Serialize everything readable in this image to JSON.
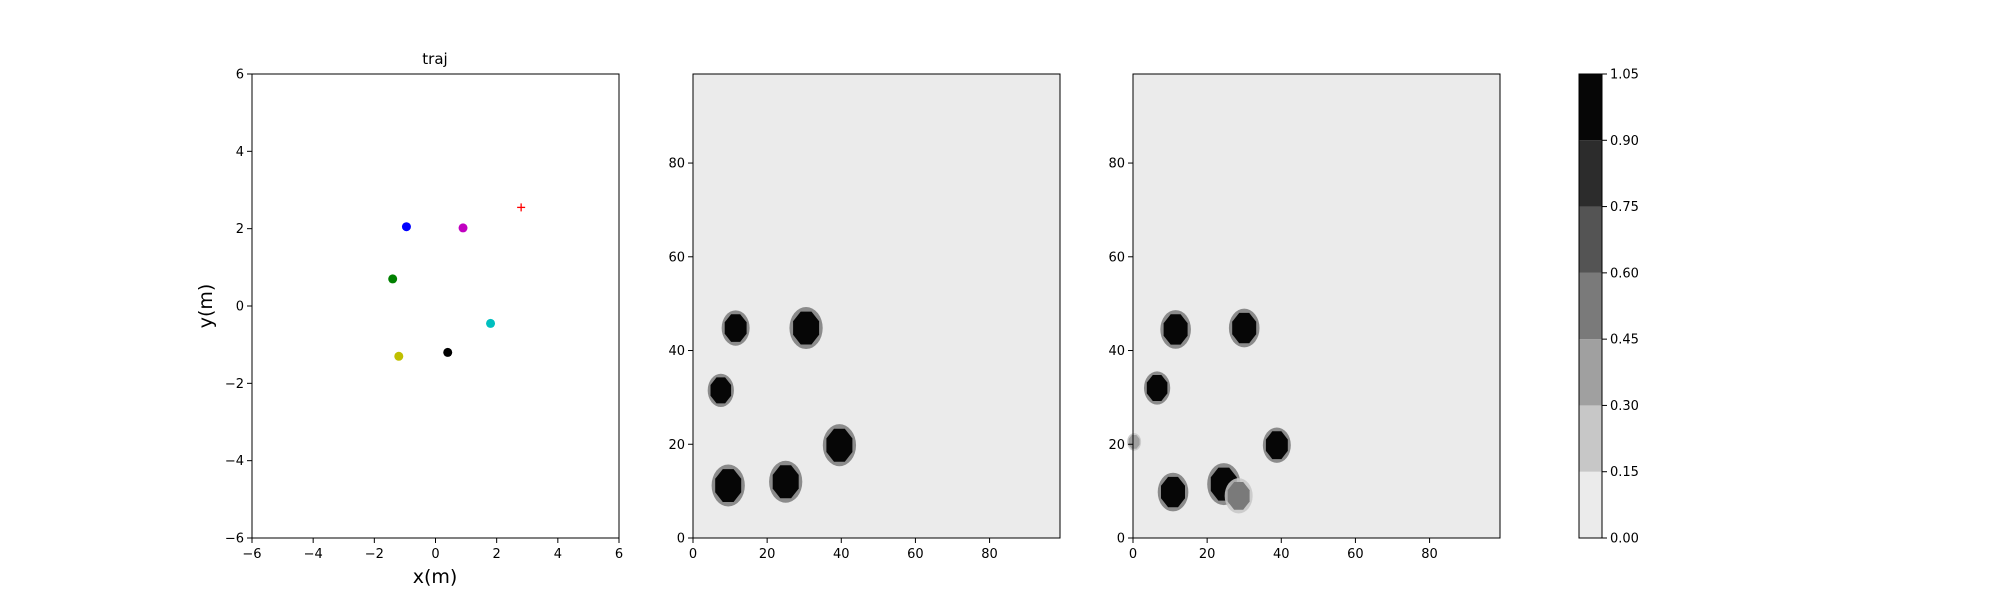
{
  "chart_data": [
    {
      "type": "scatter",
      "title": "traj",
      "xlabel": "x(m)",
      "ylabel": "y(m)",
      "xlim": [
        -6,
        6
      ],
      "ylim": [
        -6,
        6
      ],
      "xticks": [
        "−6",
        "−4",
        "−2",
        "0",
        "2",
        "4",
        "6"
      ],
      "yticks": [
        "−6",
        "−4",
        "−2",
        "0",
        "2",
        "4",
        "6"
      ],
      "grid": false,
      "points": [
        {
          "x": -0.95,
          "y": 2.05,
          "color": "#0000ff",
          "marker": "dot"
        },
        {
          "x": 0.9,
          "y": 2.02,
          "color": "#c000c0",
          "marker": "dot"
        },
        {
          "x": -1.4,
          "y": 0.7,
          "color": "#008000",
          "marker": "dot"
        },
        {
          "x": 1.8,
          "y": -0.45,
          "color": "#00bfbf",
          "marker": "dot"
        },
        {
          "x": 0.4,
          "y": -1.2,
          "color": "#000000",
          "marker": "dot"
        },
        {
          "x": -1.2,
          "y": -1.3,
          "color": "#bfbf00",
          "marker": "dot"
        },
        {
          "x": 2.8,
          "y": 2.55,
          "color": "#ff0000",
          "marker": "plus"
        }
      ]
    },
    {
      "type": "heatmap",
      "title": "",
      "xlim": [
        0,
        99
      ],
      "ylim": [
        0,
        99
      ],
      "xticks": [
        "0",
        "20",
        "40",
        "60",
        "80"
      ],
      "yticks": [
        "0",
        "20",
        "40",
        "60",
        "80"
      ],
      "background_value": 0.05,
      "blobs": [
        {
          "x": 11.5,
          "y": 44.8,
          "r": 3.2,
          "value": 1.0
        },
        {
          "x": 30.5,
          "y": 44.8,
          "r": 3.8,
          "value": 1.0
        },
        {
          "x": 7.5,
          "y": 31.5,
          "r": 3.0,
          "value": 1.0
        },
        {
          "x": 39.5,
          "y": 19.8,
          "r": 3.8,
          "value": 1.0
        },
        {
          "x": 9.5,
          "y": 11.2,
          "r": 3.8,
          "value": 1.0
        },
        {
          "x": 25.0,
          "y": 12.0,
          "r": 3.8,
          "value": 1.0
        }
      ]
    },
    {
      "type": "heatmap",
      "title": "",
      "xlim": [
        0,
        99
      ],
      "ylim": [
        0,
        99
      ],
      "xticks": [
        "0",
        "20",
        "40",
        "60",
        "80"
      ],
      "yticks": [
        "0",
        "20",
        "40",
        "60",
        "80"
      ],
      "background_value": 0.05,
      "blobs": [
        {
          "x": 11.5,
          "y": 44.5,
          "r": 3.5,
          "value": 1.0
        },
        {
          "x": 30.0,
          "y": 44.8,
          "r": 3.5,
          "value": 1.0
        },
        {
          "x": 6.5,
          "y": 32.0,
          "r": 3.0,
          "value": 1.0
        },
        {
          "x": 38.8,
          "y": 19.8,
          "r": 3.2,
          "value": 1.0
        },
        {
          "x": 10.8,
          "y": 9.8,
          "r": 3.5,
          "value": 1.0
        },
        {
          "x": 24.5,
          "y": 11.5,
          "r": 3.8,
          "value": 1.0
        },
        {
          "x": 28.5,
          "y": 9.0,
          "r": 3.2,
          "value": 0.55
        },
        {
          "x": 0.3,
          "y": 20.5,
          "r": 1.6,
          "value": 0.3
        }
      ]
    }
  ],
  "colorbar": {
    "levels": [
      0.0,
      0.15,
      0.3,
      0.45,
      0.6,
      0.75,
      0.9,
      1.05
    ],
    "tick_labels": [
      "0.00",
      "0.15",
      "0.30",
      "0.45",
      "0.60",
      "0.75",
      "0.90",
      "1.05"
    ],
    "colors": [
      "#ebebeb",
      "#c7c7c7",
      "#a0a0a0",
      "#7a7a7a",
      "#545454",
      "#2c2c2c",
      "#060606"
    ]
  }
}
